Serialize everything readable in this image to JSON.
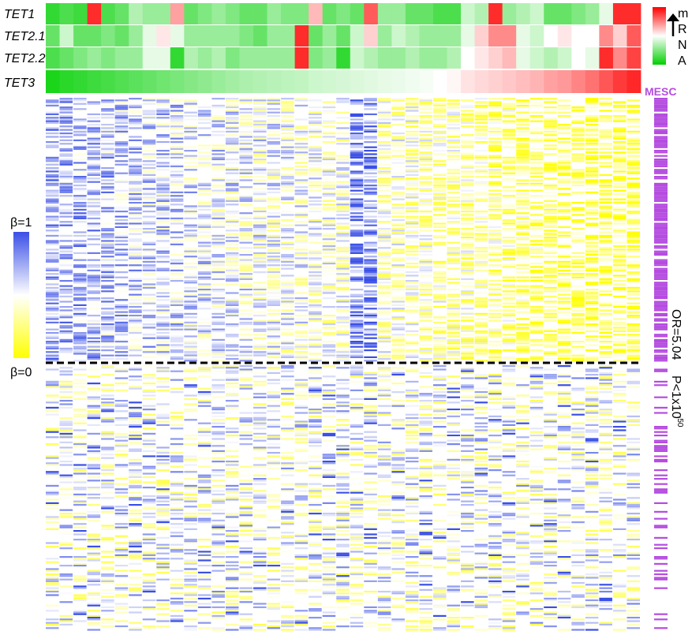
{
  "expression_panel": {
    "genes": [
      {
        "label": "TET1",
        "values": [
          0.1,
          0.15,
          0.12,
          0.95,
          0.15,
          0.2,
          0.35,
          0.3,
          0.3,
          0.7,
          0.2,
          0.25,
          0.3,
          0.25,
          0.2,
          0.2,
          0.3,
          0.25,
          0.25,
          0.65,
          0.2,
          0.25,
          0.2,
          0.85,
          0.3,
          0.3,
          0.2,
          0.2,
          0.15,
          0.15,
          0.4,
          0.35,
          0.95,
          0.3,
          0.35,
          0.4,
          0.2,
          0.2,
          0.25,
          0.3,
          0.45,
          0.95,
          0.95
        ]
      },
      {
        "label": "TET2.1",
        "values": [
          0.2,
          0.4,
          0.2,
          0.2,
          0.25,
          0.2,
          0.3,
          0.45,
          0.55,
          0.45,
          0.3,
          0.3,
          0.3,
          0.3,
          0.25,
          0.2,
          0.3,
          0.3,
          0.95,
          0.2,
          0.3,
          0.2,
          0.4,
          0.6,
          0.3,
          0.4,
          0.35,
          0.3,
          0.3,
          0.3,
          0.45,
          0.6,
          0.75,
          0.75,
          0.45,
          0.4,
          0.5,
          0.55,
          0.5,
          0.5,
          0.75,
          0.6,
          0.85
        ]
      },
      {
        "label": "TET2.2",
        "values": [
          0.15,
          0.2,
          0.25,
          0.3,
          0.25,
          0.3,
          0.3,
          0.45,
          0.45,
          0.1,
          0.35,
          0.3,
          0.35,
          0.25,
          0.3,
          0.3,
          0.3,
          0.3,
          0.95,
          0.25,
          0.3,
          0.1,
          0.4,
          0.35,
          0.3,
          0.3,
          0.35,
          0.3,
          0.3,
          0.35,
          0.5,
          0.55,
          0.6,
          0.65,
          0.45,
          0.4,
          0.35,
          0.4,
          0.5,
          0.45,
          0.95,
          0.75,
          0.9
        ]
      },
      {
        "label": "TET3",
        "values": [
          0.05,
          0.08,
          0.1,
          0.12,
          0.14,
          0.16,
          0.18,
          0.2,
          0.22,
          0.24,
          0.26,
          0.28,
          0.3,
          0.32,
          0.34,
          0.35,
          0.36,
          0.37,
          0.38,
          0.4,
          0.41,
          0.42,
          0.43,
          0.44,
          0.45,
          0.46,
          0.47,
          0.48,
          0.5,
          0.52,
          0.56,
          0.58,
          0.6,
          0.62,
          0.64,
          0.66,
          0.7,
          0.72,
          0.76,
          0.8,
          0.86,
          0.92,
          0.96
        ]
      }
    ]
  },
  "mrna_legend": {
    "letters": [
      "m",
      "R",
      "N",
      "A"
    ],
    "colors": {
      "high": "#ff0000",
      "mid": "#ffffff",
      "low": "#00d000"
    }
  },
  "methylation_legend": {
    "top_label": "β=1",
    "bottom_label": "β=0",
    "colors": {
      "high": "#3a4fe6",
      "mid": "#ffffff",
      "low": "#ffff00"
    }
  },
  "annotation": {
    "track_label": "MESC",
    "track_color": "#b54ce0",
    "odds_ratio": "OR=5.04",
    "pvalue_base": "P<1x10",
    "pvalue_exp": "-50"
  },
  "heatmap": {
    "columns": 43,
    "top_block_trend": "blue (methylated) on left, yellow (unmethylated) on right",
    "bottom_block_trend": "mixed / unstructured"
  }
}
